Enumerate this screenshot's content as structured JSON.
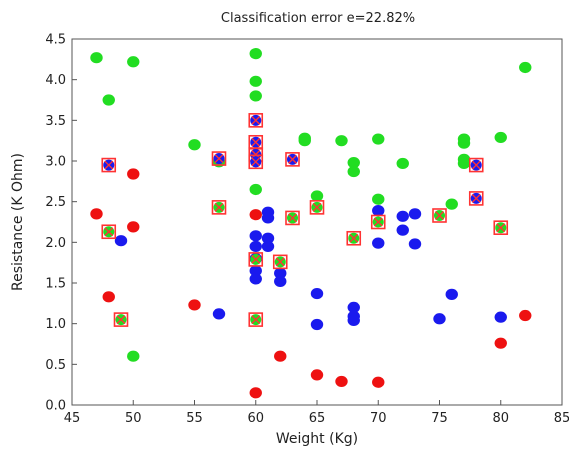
{
  "chart_data": {
    "type": "scatter",
    "title": "Classification  error e=22.82%",
    "xlabel": "Weight (Kg)",
    "ylabel": "Resistance (K Ohm)",
    "xlim": [
      45,
      85
    ],
    "ylim": [
      0,
      4.5
    ],
    "x_ticks": [
      "45",
      "50",
      "55",
      "60",
      "65",
      "70",
      "75",
      "80",
      "85"
    ],
    "y_ticks": [
      "0.0",
      "0.5",
      "1.0",
      "1.5",
      "2.0",
      "2.5",
      "3.0",
      "3.5",
      "4.0",
      "4.5"
    ],
    "grid": false,
    "colors": {
      "green": "#22dd22",
      "red": "#ee1111",
      "blue": "#1a1aee",
      "marker_outline": "#ff3333"
    },
    "series": [
      {
        "color_key": "green",
        "values": [
          [
            47,
            4.27
          ],
          [
            48,
            3.75
          ],
          [
            50,
            4.22
          ],
          [
            50,
            0.6
          ],
          [
            55,
            3.2
          ],
          [
            57,
            2.99
          ],
          [
            60,
            4.32
          ],
          [
            60,
            3.98
          ],
          [
            60,
            3.8
          ],
          [
            60,
            2.65
          ],
          [
            64,
            3.28
          ],
          [
            64,
            3.25
          ],
          [
            65,
            2.57
          ],
          [
            67,
            3.25
          ],
          [
            68,
            2.98
          ],
          [
            68,
            2.87
          ],
          [
            70,
            3.27
          ],
          [
            70,
            2.53
          ],
          [
            72,
            2.97
          ],
          [
            76,
            2.47
          ],
          [
            77,
            3.27
          ],
          [
            77,
            3.22
          ],
          [
            77,
            3.02
          ],
          [
            77,
            2.97
          ],
          [
            80,
            3.29
          ],
          [
            82,
            4.15
          ]
        ]
      },
      {
        "color_key": "red",
        "values": [
          [
            47,
            2.35
          ],
          [
            48,
            1.33
          ],
          [
            50,
            2.84
          ],
          [
            50,
            2.19
          ],
          [
            55,
            1.23
          ],
          [
            60,
            2.34
          ],
          [
            60,
            0.15
          ],
          [
            62,
            0.6
          ],
          [
            65,
            0.37
          ],
          [
            67,
            0.29
          ],
          [
            70,
            0.28
          ],
          [
            80,
            0.76
          ],
          [
            82,
            1.1
          ]
        ]
      },
      {
        "color_key": "blue",
        "values": [
          [
            49,
            2.02
          ],
          [
            57,
            1.12
          ],
          [
            60,
            2.08
          ],
          [
            60,
            1.95
          ],
          [
            60,
            1.8
          ],
          [
            60,
            1.65
          ],
          [
            60,
            1.55
          ],
          [
            61,
            2.37
          ],
          [
            61,
            2.3
          ],
          [
            61,
            2.05
          ],
          [
            61,
            1.95
          ],
          [
            62,
            1.62
          ],
          [
            62,
            1.52
          ],
          [
            65,
            1.37
          ],
          [
            65,
            0.99
          ],
          [
            68,
            1.2
          ],
          [
            68,
            1.09
          ],
          [
            68,
            1.04
          ],
          [
            70,
            2.39
          ],
          [
            70,
            1.99
          ],
          [
            72,
            2.32
          ],
          [
            72,
            2.15
          ],
          [
            73,
            2.35
          ],
          [
            73,
            1.98
          ],
          [
            75,
            1.06
          ],
          [
            76,
            1.36
          ],
          [
            80,
            1.08
          ]
        ]
      },
      {
        "color_key": "marker_outline",
        "marker": "square_with_x",
        "values": [
          [
            48,
            2.95,
            "blue"
          ],
          [
            48,
            2.13,
            "green"
          ],
          [
            49,
            1.05,
            "green"
          ],
          [
            57,
            3.03,
            "blue"
          ],
          [
            57,
            2.43,
            "green"
          ],
          [
            60,
            3.5,
            "blue"
          ],
          [
            60,
            3.23,
            "blue"
          ],
          [
            60,
            3.08,
            "blue"
          ],
          [
            60,
            2.99,
            "blue"
          ],
          [
            60,
            1.79,
            "green"
          ],
          [
            60,
            1.05,
            "green"
          ],
          [
            62,
            1.76,
            "green"
          ],
          [
            63,
            3.02,
            "blue"
          ],
          [
            63,
            2.3,
            "green"
          ],
          [
            65,
            2.43,
            "green"
          ],
          [
            68,
            2.05,
            "green"
          ],
          [
            70,
            2.25,
            "green"
          ],
          [
            75,
            2.33,
            "green"
          ],
          [
            78,
            2.95,
            "blue"
          ],
          [
            78,
            2.54,
            "blue"
          ],
          [
            80,
            2.18,
            "green"
          ]
        ]
      }
    ]
  }
}
